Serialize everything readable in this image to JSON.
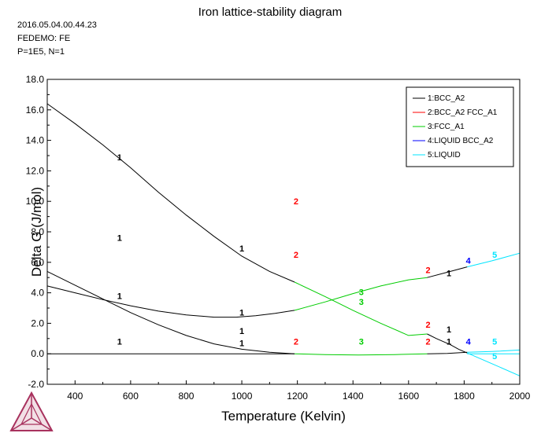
{
  "header": {
    "date": "2016.05.04.00.44.23",
    "database": "FEDEMO: FE",
    "conditions": "P=1E5, N=1"
  },
  "chart_data": {
    "type": "line",
    "title": "Iron lattice-stability diagram",
    "xlabel": "Temperature (Kelvin)",
    "ylabel": "Delta G (J/mol)",
    "xlim": [
      300,
      2000
    ],
    "ylim": [
      -2,
      18
    ],
    "xticks": [
      400,
      600,
      800,
      1000,
      1200,
      1400,
      1600,
      1800,
      2000
    ],
    "xtick_labels": [
      "400",
      "600",
      "800",
      "1000",
      "1200",
      "1400",
      "1600",
      "1800",
      "2000"
    ],
    "yticks": [
      -2,
      0,
      2,
      4,
      6,
      8,
      10,
      12,
      14,
      16,
      18
    ],
    "ytick_labels": [
      "-2.0",
      "0.0",
      "2.0",
      "4.0",
      "6.0",
      "8.0",
      "10.0",
      "12.0",
      "14.0",
      "16.0",
      "18.0"
    ],
    "legend_position": "top-right",
    "legend": [
      {
        "label": "1:BCC_A2",
        "color": "#000000"
      },
      {
        "label": "2:BCC_A2 FCC_A1",
        "color": "#ff0000"
      },
      {
        "label": "3:FCC_A1",
        "color": "#00cc00"
      },
      {
        "label": "4:LIQUID BCC_A2",
        "color": "#0000ff"
      },
      {
        "label": "5:LIQUID",
        "color": "#00e5ff"
      }
    ],
    "series": [
      {
        "color": "#000000",
        "points": [
          [
            300,
            16.4
          ],
          [
            400,
            15.1
          ],
          [
            500,
            13.7
          ],
          [
            600,
            12.2
          ],
          [
            700,
            10.6
          ],
          [
            800,
            9.1
          ],
          [
            900,
            7.7
          ],
          [
            1000,
            6.4
          ],
          [
            1100,
            5.4
          ],
          [
            1190,
            4.7
          ]
        ]
      },
      {
        "color": "#000000",
        "points": [
          [
            300,
            4.45
          ],
          [
            400,
            4.0
          ],
          [
            500,
            3.55
          ],
          [
            600,
            3.15
          ],
          [
            700,
            2.8
          ],
          [
            800,
            2.55
          ],
          [
            900,
            2.4
          ],
          [
            980,
            2.4
          ],
          [
            1050,
            2.5
          ],
          [
            1120,
            2.65
          ],
          [
            1190,
            2.85
          ]
        ]
      },
      {
        "color": "#000000",
        "points": [
          [
            300,
            5.4
          ],
          [
            400,
            4.5
          ],
          [
            500,
            3.6
          ],
          [
            600,
            2.7
          ],
          [
            700,
            1.9
          ],
          [
            800,
            1.2
          ],
          [
            900,
            0.65
          ],
          [
            1000,
            0.3
          ],
          [
            1100,
            0.1
          ],
          [
            1190,
            0.0
          ]
        ]
      },
      {
        "color": "#000000",
        "points": [
          [
            300,
            0.0
          ],
          [
            1190,
            0.0
          ]
        ]
      },
      {
        "color": "#000000",
        "points": [
          [
            1667,
            1.3
          ],
          [
            1700,
            1.0
          ],
          [
            1750,
            0.6
          ],
          [
            1780,
            0.3
          ],
          [
            1811,
            0.05
          ]
        ]
      },
      {
        "color": "#000000",
        "points": [
          [
            1667,
            0.0
          ],
          [
            1740,
            0.02
          ],
          [
            1811,
            0.1
          ]
        ]
      },
      {
        "color": "#000000",
        "points": [
          [
            1667,
            5.0
          ],
          [
            1740,
            5.35
          ],
          [
            1811,
            5.7
          ]
        ]
      },
      {
        "color": "#00cc00",
        "points": [
          [
            1190,
            2.85
          ],
          [
            1300,
            3.4
          ],
          [
            1400,
            3.95
          ],
          [
            1500,
            4.45
          ],
          [
            1600,
            4.85
          ],
          [
            1667,
            5.0
          ]
        ]
      },
      {
        "color": "#00cc00",
        "points": [
          [
            1190,
            4.7
          ],
          [
            1300,
            3.75
          ],
          [
            1400,
            2.85
          ],
          [
            1500,
            2.0
          ],
          [
            1600,
            1.2
          ],
          [
            1667,
            1.3
          ]
        ]
      },
      {
        "color": "#00cc00",
        "points": [
          [
            1190,
            0.0
          ],
          [
            1300,
            -0.05
          ],
          [
            1420,
            -0.08
          ],
          [
            1550,
            -0.05
          ],
          [
            1667,
            0.0
          ]
        ]
      },
      {
        "color": "#00e5ff",
        "points": [
          [
            1811,
            5.7
          ],
          [
            1900,
            6.1
          ],
          [
            2000,
            6.6
          ]
        ]
      },
      {
        "color": "#00e5ff",
        "points": [
          [
            1811,
            0.05
          ],
          [
            1900,
            -0.65
          ],
          [
            2000,
            -1.45
          ]
        ]
      },
      {
        "color": "#00e5ff",
        "points": [
          [
            1811,
            0.1
          ],
          [
            1900,
            0.15
          ],
          [
            2000,
            0.25
          ]
        ]
      },
      {
        "color": "#00e5ff",
        "points": [
          [
            1811,
            0.0
          ],
          [
            1900,
            0.0
          ],
          [
            2000,
            0.0
          ]
        ]
      }
    ],
    "annotations": [
      {
        "text": "1",
        "x": 560,
        "y": 12.7,
        "color": "#000000"
      },
      {
        "text": "1",
        "x": 1000,
        "y": 6.7,
        "color": "#000000"
      },
      {
        "text": "1",
        "x": 560,
        "y": 7.4,
        "color": "#000000"
      },
      {
        "text": "1",
        "x": 560,
        "y": 3.6,
        "color": "#000000"
      },
      {
        "text": "1",
        "x": 1000,
        "y": 2.5,
        "color": "#000000"
      },
      {
        "text": "1",
        "x": 560,
        "y": 0.6,
        "color": "#000000"
      },
      {
        "text": "1",
        "x": 1000,
        "y": 1.3,
        "color": "#000000"
      },
      {
        "text": "1",
        "x": 1000,
        "y": 0.5,
        "color": "#000000"
      },
      {
        "text": "1",
        "x": 1745,
        "y": 5.1,
        "color": "#000000"
      },
      {
        "text": "1",
        "x": 1745,
        "y": 1.4,
        "color": "#000000"
      },
      {
        "text": "1",
        "x": 1745,
        "y": 0.6,
        "color": "#000000"
      },
      {
        "text": "2",
        "x": 1195,
        "y": 9.8,
        "color": "#ff0000"
      },
      {
        "text": "2",
        "x": 1195,
        "y": 6.3,
        "color": "#ff0000"
      },
      {
        "text": "2",
        "x": 1195,
        "y": 0.6,
        "color": "#ff0000"
      },
      {
        "text": "2",
        "x": 1670,
        "y": 5.3,
        "color": "#ff0000"
      },
      {
        "text": "2",
        "x": 1670,
        "y": 1.7,
        "color": "#ff0000"
      },
      {
        "text": "2",
        "x": 1670,
        "y": 0.6,
        "color": "#ff0000"
      },
      {
        "text": "3",
        "x": 1430,
        "y": 3.85,
        "color": "#00cc00"
      },
      {
        "text": "3",
        "x": 1430,
        "y": 3.2,
        "color": "#00cc00"
      },
      {
        "text": "3",
        "x": 1430,
        "y": 0.6,
        "color": "#00cc00"
      },
      {
        "text": "4",
        "x": 1815,
        "y": 5.9,
        "color": "#0000ff"
      },
      {
        "text": "4",
        "x": 1815,
        "y": 0.6,
        "color": "#0000ff"
      },
      {
        "text": "5",
        "x": 1910,
        "y": 6.3,
        "color": "#00e5ff"
      },
      {
        "text": "5",
        "x": 1910,
        "y": 0.6,
        "color": "#00e5ff"
      },
      {
        "text": "5",
        "x": 1910,
        "y": -0.35,
        "color": "#00e5ff"
      }
    ]
  }
}
